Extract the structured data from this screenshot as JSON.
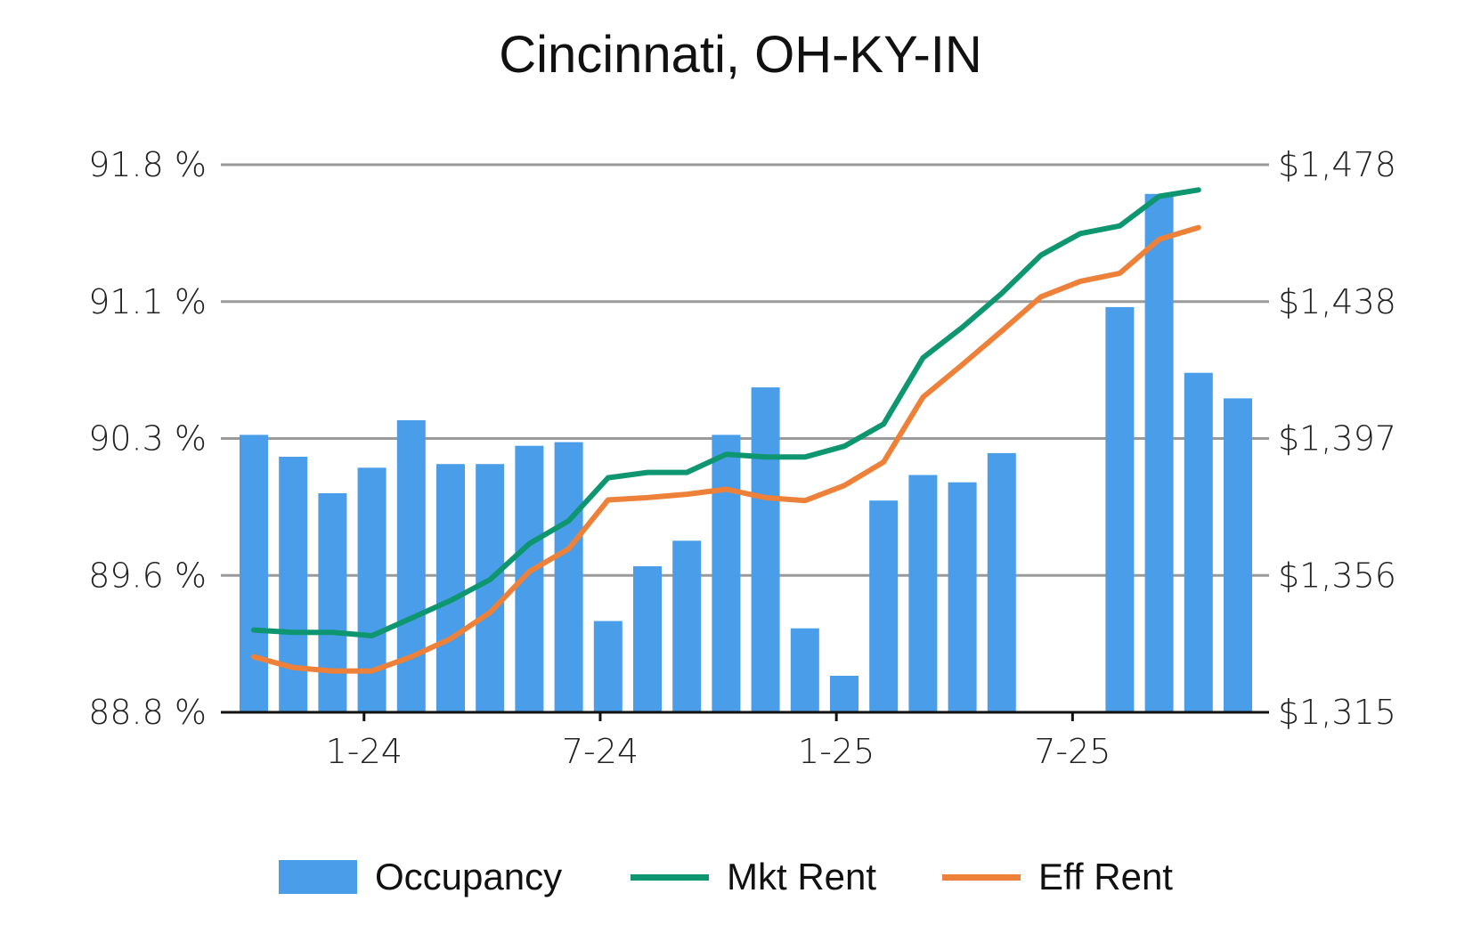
{
  "chart_data": {
    "type": "bar",
    "title": "Cincinnati, OH-KY-IN",
    "left_axis": {
      "ticks": [
        "91.8 %",
        "91.1 %",
        "90.3 %",
        "89.6 %",
        "88.8 %"
      ],
      "range": [
        88.8,
        91.8
      ]
    },
    "right_axis": {
      "ticks": [
        "$1,478",
        "$1,438",
        "$1,397",
        "$1,356",
        "$1,315"
      ],
      "range": [
        1315,
        1478
      ]
    },
    "x_ticks": [
      {
        "label": "1-24",
        "index": 3
      },
      {
        "label": "7-24",
        "index": 9
      },
      {
        "label": "1-25",
        "index": 15
      },
      {
        "label": "7-25",
        "index": 21
      }
    ],
    "grid": true,
    "legend_position": "bottom",
    "months": 26,
    "series": [
      {
        "name": "Occupancy",
        "kind": "bar",
        "color": "#4a9de8",
        "values": [
          90.32,
          90.2,
          90.0,
          90.14,
          90.4,
          90.16,
          90.16,
          90.26,
          90.28,
          89.3,
          89.6,
          89.74,
          90.32,
          90.58,
          89.26,
          89.0,
          89.96,
          90.1,
          90.06,
          90.22,
          null,
          null,
          91.02,
          91.64,
          90.66,
          90.52
        ]
      },
      {
        "name": "Mkt Rent",
        "kind": "line",
        "color": "#0e9670",
        "values": [
          1339.5,
          1338.8,
          1338.8,
          1337.8,
          1343.0,
          1348.3,
          1354.5,
          1365.2,
          1372.0,
          1384.8,
          1386.4,
          1386.4,
          1391.8,
          1391.0,
          1391.0,
          1394.2,
          1400.8,
          1420.5,
          1429.6,
          1439.7,
          1451.1,
          1457.5,
          1459.8,
          1468.6,
          1470.5
        ]
      },
      {
        "name": "Eff Rent",
        "kind": "line",
        "color": "#ed8139",
        "values": [
          1331.5,
          1328.3,
          1327.3,
          1327.3,
          1331.5,
          1336.9,
          1344.7,
          1356.9,
          1363.7,
          1378.2,
          1378.9,
          1379.9,
          1381.4,
          1378.9,
          1378.0,
          1382.5,
          1389.5,
          1408.8,
          1418.5,
          1428.5,
          1438.7,
          1443.3,
          1445.7,
          1455.8,
          1459.3
        ]
      }
    ]
  }
}
